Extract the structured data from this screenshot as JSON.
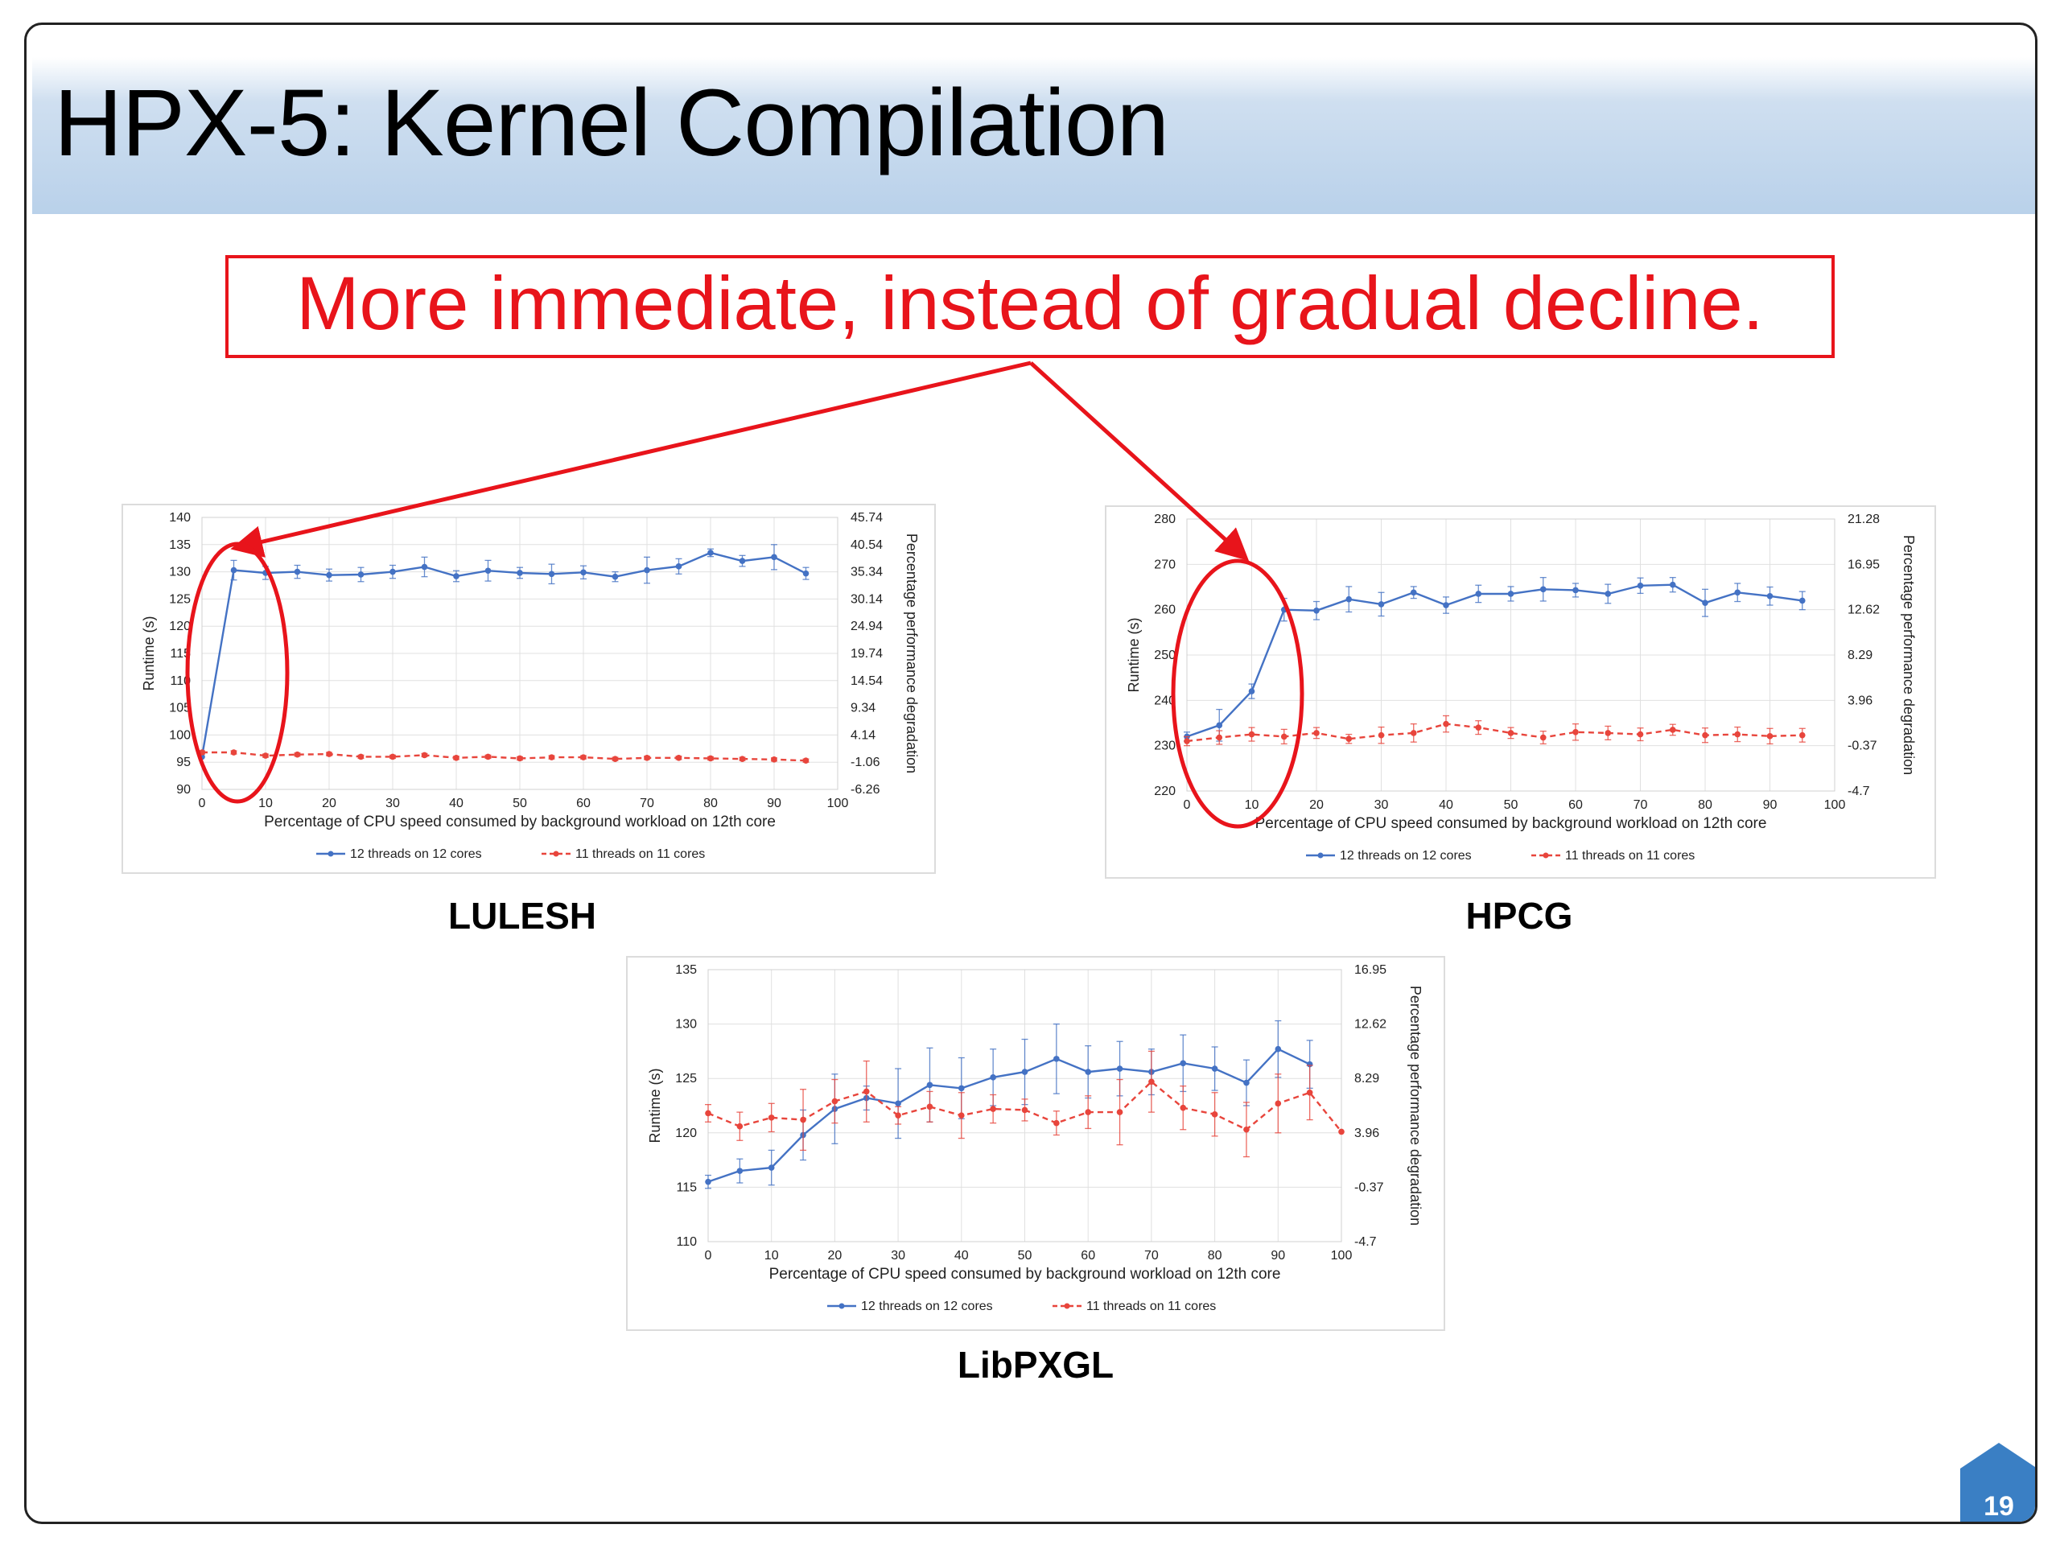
{
  "slide": {
    "title": "HPX-5: Kernel Compilation",
    "callout": "More immediate, instead of gradual decline.",
    "page_number": "19"
  },
  "colors": {
    "title_gradient": "#b9d1ea",
    "callout_red": "#e8141b",
    "series_blue": "#4472c4",
    "series_red": "#e8453c",
    "badge_blue": "#3a7fc4"
  },
  "chart_data": [
    {
      "type": "line",
      "caption": "LULESH",
      "xlabel": "Percentage of CPU speed consumed by background workload on 12th core",
      "ylabel": "Runtime (s)",
      "y2label": "Percentage performance degradation",
      "xlim": [
        0,
        100
      ],
      "ylim": [
        90,
        140
      ],
      "xticks": [
        "0",
        "10",
        "20",
        "30",
        "40",
        "50",
        "60",
        "70",
        "80",
        "90",
        "100"
      ],
      "yticks": [
        "90",
        "95",
        "100",
        "105",
        "110",
        "115",
        "120",
        "125",
        "130",
        "135",
        "140"
      ],
      "y2ticks": [
        "-6.26",
        "-1.06",
        "4.14",
        "9.34",
        "14.54",
        "19.74",
        "24.94",
        "30.14",
        "35.34",
        "40.54",
        "45.74"
      ],
      "grid": true,
      "legend_position": "bottom",
      "x": [
        0,
        5,
        10,
        15,
        20,
        25,
        30,
        35,
        40,
        45,
        50,
        55,
        60,
        65,
        70,
        75,
        80,
        85,
        90,
        95
      ],
      "series": [
        {
          "name": "12 threads on 12 cores",
          "color": "#4472c4",
          "dashed": false,
          "values": [
            96,
            130.3,
            129.8,
            130,
            129.4,
            129.5,
            130,
            130.9,
            129.2,
            130.2,
            129.8,
            129.6,
            129.9,
            129.1,
            130.3,
            131,
            133.5,
            132,
            132.7,
            129.7
          ],
          "errors": [
            0,
            1.8,
            1.2,
            1.2,
            1.1,
            1.3,
            1.2,
            1.8,
            1.0,
            1.9,
            1.0,
            1.8,
            1.2,
            0.9,
            2.4,
            1.4,
            0.7,
            1.0,
            2.3,
            1.1
          ]
        },
        {
          "name": "11 threads on 11 cores",
          "color": "#e8453c",
          "dashed": true,
          "values": [
            96.8,
            96.8,
            96.2,
            96.4,
            96.5,
            96,
            96,
            96.3,
            95.8,
            96,
            95.7,
            95.9,
            95.9,
            95.6,
            95.8,
            95.8,
            95.7,
            95.6,
            95.5,
            95.3
          ],
          "errors": [
            0.3,
            0.3,
            0.3,
            0.3,
            0.3,
            0.3,
            0.3,
            0.3,
            0.3,
            0.3,
            0.3,
            0.3,
            0.3,
            0.3,
            0.3,
            0.3,
            0.3,
            0.3,
            0.3,
            0.3
          ]
        }
      ]
    },
    {
      "type": "line",
      "caption": "HPCG",
      "xlabel": "Percentage of CPU speed consumed by background workload on 12th core",
      "ylabel": "Runtime (s)",
      "y2label": "Percentage performance degradation",
      "xlim": [
        0,
        100
      ],
      "ylim": [
        220,
        280
      ],
      "xticks": [
        "0",
        "10",
        "20",
        "30",
        "40",
        "50",
        "60",
        "70",
        "80",
        "90",
        "100"
      ],
      "yticks": [
        "220",
        "230",
        "240",
        "250",
        "260",
        "270",
        "280"
      ],
      "y2ticks": [
        "-4.7",
        "-0.37",
        "3.96",
        "8.29",
        "12.62",
        "16.95",
        "21.28"
      ],
      "grid": true,
      "legend_position": "bottom",
      "x": [
        0,
        5,
        10,
        15,
        20,
        25,
        30,
        35,
        40,
        45,
        50,
        55,
        60,
        65,
        70,
        75,
        80,
        85,
        90,
        95
      ],
      "series": [
        {
          "name": "12 threads on 12 cores",
          "color": "#4472c4",
          "dashed": false,
          "values": [
            232,
            234.5,
            242,
            260,
            259.8,
            262.3,
            261.2,
            263.8,
            261,
            263.5,
            263.5,
            264.5,
            264.3,
            263.5,
            265.3,
            265.5,
            261.5,
            263.8,
            263,
            262
          ],
          "errors": [
            1.0,
            3.5,
            1.6,
            2.5,
            2.0,
            2.8,
            2.6,
            1.3,
            1.8,
            1.9,
            1.6,
            2.6,
            1.5,
            2.1,
            1.7,
            1.6,
            3.0,
            2.0,
            2.0,
            2.0
          ]
        },
        {
          "name": "11 threads on 11 cores",
          "color": "#e8453c",
          "dashed": true,
          "values": [
            231,
            231.8,
            232.5,
            232,
            232.8,
            231.5,
            232.3,
            232.8,
            234.8,
            234,
            232.8,
            231.8,
            233,
            232.8,
            232.5,
            233.5,
            232.3,
            232.5,
            232.1,
            232.3
          ],
          "errors": [
            1.0,
            1.5,
            1.5,
            1.6,
            1.2,
            1.0,
            1.8,
            2.0,
            1.8,
            1.5,
            1.2,
            1.4,
            1.8,
            1.5,
            1.4,
            1.2,
            1.6,
            1.6,
            1.7,
            1.5
          ]
        }
      ]
    },
    {
      "type": "line",
      "caption": "LibPXGL",
      "xlabel": "Percentage of CPU speed consumed by background workload on 12th core",
      "ylabel": "Runtime (s)",
      "y2label": "Percentage performance degradation",
      "xlim": [
        0,
        100
      ],
      "ylim": [
        110,
        135
      ],
      "xticks": [
        "0",
        "10",
        "20",
        "30",
        "40",
        "50",
        "60",
        "70",
        "80",
        "90",
        "100"
      ],
      "yticks": [
        "110",
        "115",
        "120",
        "125",
        "130",
        "135"
      ],
      "y2ticks": [
        "-4.7",
        "-0.37",
        "3.96",
        "8.29",
        "12.62",
        "16.95"
      ],
      "grid": true,
      "legend_position": "bottom",
      "x": [
        0,
        5,
        10,
        15,
        20,
        25,
        30,
        35,
        40,
        45,
        50,
        55,
        60,
        65,
        70,
        75,
        80,
        85,
        90,
        95,
        100
      ],
      "series": [
        {
          "name": "12 threads on 12 cores",
          "color": "#4472c4",
          "dashed": false,
          "values": [
            115.5,
            116.5,
            116.8,
            119.8,
            122.2,
            123.2,
            122.7,
            124.4,
            124.1,
            125.1,
            125.6,
            126.8,
            125.6,
            125.9,
            125.6,
            126.4,
            125.9,
            124.6,
            127.7,
            126.3,
            null
          ],
          "errors": [
            0.6,
            1.1,
            1.6,
            2.3,
            3.2,
            1.1,
            3.2,
            3.4,
            2.8,
            2.6,
            3.0,
            3.2,
            2.4,
            2.5,
            2.1,
            2.6,
            2.0,
            2.1,
            2.6,
            2.2,
            null
          ]
        },
        {
          "name": "11 threads on 11 cores",
          "color": "#e8453c",
          "dashed": true,
          "values": [
            121.8,
            120.6,
            121.4,
            121.2,
            122.9,
            123.8,
            121.6,
            122.4,
            121.6,
            122.2,
            122.1,
            120.9,
            121.9,
            121.9,
            124.7,
            122.3,
            121.7,
            120.3,
            122.7,
            123.7,
            120.1
          ],
          "errors": [
            0.8,
            1.3,
            1.3,
            2.8,
            2.0,
            2.8,
            0.8,
            1.4,
            2.1,
            1.3,
            1.0,
            1.1,
            1.5,
            3.0,
            2.8,
            2.0,
            2.0,
            2.5,
            2.7,
            2.5,
            0.0
          ]
        }
      ]
    }
  ]
}
